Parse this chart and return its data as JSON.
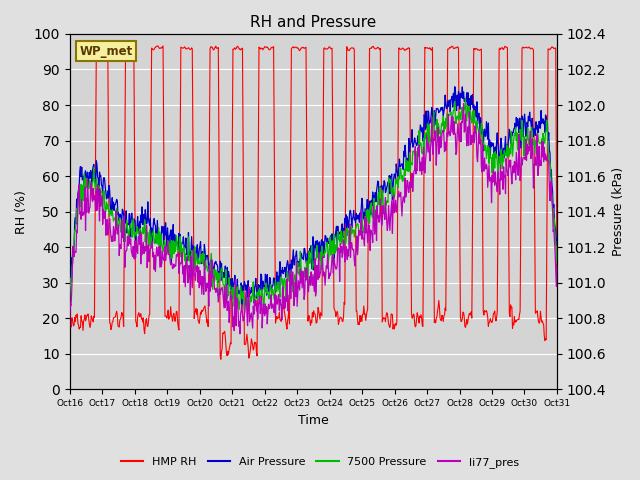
{
  "title": "RH and Pressure",
  "xlabel": "Time",
  "ylabel_left": "RH (%)",
  "ylabel_right": "Pressure (kPa)",
  "ylim_left": [
    0,
    100
  ],
  "ylim_right": [
    100.4,
    102.4
  ],
  "yticks_left": [
    0,
    10,
    20,
    30,
    40,
    50,
    60,
    70,
    80,
    90,
    100
  ],
  "yticks_right": [
    100.4,
    100.6,
    100.8,
    101.0,
    101.2,
    101.4,
    101.6,
    101.8,
    102.0,
    102.2,
    102.4
  ],
  "xtick_labels": [
    "Oct 16",
    "Oct 17",
    "Oct 18",
    "Oct 19",
    "Oct 20",
    "Oct 21",
    "Oct 22",
    "Oct 23",
    "Oct 24",
    "Oct 25",
    "Oct 26",
    "Oct 27",
    "Oct 28",
    "Oct 29",
    "Oct 30",
    "Oct 31"
  ],
  "watermark": "WP_met",
  "bg_color": "#e0e0e0",
  "plot_bg_color": "#d4d4d4",
  "colors": {
    "HMP_RH": "#ff0000",
    "Air_Pressure": "#0000cc",
    "Pressure_7500": "#00bb00",
    "li77_pres": "#bb00bb"
  },
  "legend_labels": [
    "HMP RH",
    "Air Pressure",
    "7500 Pressure",
    "li77_pres"
  ],
  "legend_colors": [
    "#ff0000",
    "#0000cc",
    "#00bb00",
    "#bb00bb"
  ]
}
